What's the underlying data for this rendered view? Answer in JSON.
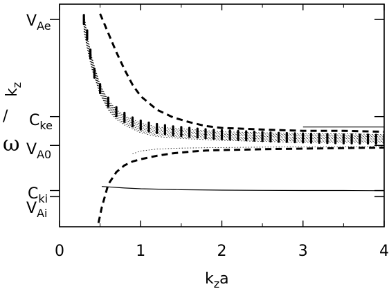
{
  "chart_data": {
    "type": "line",
    "title": "",
    "xlabel": {
      "main": "k",
      "sub": "z",
      "tail": "a"
    },
    "ylabel": {
      "omega": "ω",
      "slash": "/",
      "main": "k",
      "sub": "z"
    },
    "xlim": [
      0,
      4
    ],
    "xticks": [
      0,
      1,
      2,
      3,
      4
    ],
    "ytick_labels": [
      {
        "main": "V",
        "sub": "Ae",
        "speed": "VAe"
      },
      {
        "main": "C",
        "sub": "ke",
        "speed": "Cke"
      },
      {
        "main": "V",
        "sub": "A0",
        "speed": "VA0"
      },
      {
        "main": "C",
        "sub": "ki",
        "speed": "Cki"
      },
      {
        "main": "V",
        "sub": "Ai",
        "speed": "VAi"
      }
    ],
    "speed_levels": {
      "VAe": 1.0,
      "Cke": 0.494,
      "VA0": 0.344,
      "Cki": 0.109,
      "VAi": 0.077
    },
    "ylim": [
      -0.08,
      1.08
    ],
    "series": [
      {
        "style": "dashed",
        "x": [
          0.5,
          0.6,
          0.7,
          0.8,
          0.9,
          1.0,
          1.2,
          1.4,
          1.6,
          1.8,
          2.0,
          2.3,
          2.6,
          3.0,
          3.5,
          4.0
        ],
        "y": [
          1.03,
          0.93,
          0.83,
          0.74,
          0.66,
          0.6,
          0.53,
          0.49,
          0.465,
          0.445,
          0.435,
          0.43,
          0.425,
          0.42,
          0.42,
          0.415
        ]
      },
      {
        "style": "dashed",
        "x": [
          0.48,
          0.52,
          0.6,
          0.7,
          0.8,
          0.9,
          1.0,
          1.2,
          1.4,
          1.6,
          1.8,
          2.0,
          2.3,
          2.6,
          3.0,
          3.5,
          4.0
        ],
        "y": [
          -0.06,
          0.02,
          0.14,
          0.205,
          0.24,
          0.26,
          0.272,
          0.29,
          0.303,
          0.311,
          0.317,
          0.32,
          0.322,
          0.325,
          0.327,
          0.33,
          0.333
        ]
      },
      {
        "style": "solid",
        "x": [
          0.52,
          0.8,
          1.0,
          1.5,
          2.0,
          2.5,
          3.0,
          3.5,
          4.0
        ],
        "y": [
          0.13,
          0.122,
          0.118,
          0.113,
          0.111,
          0.11,
          0.109,
          0.109,
          0.108
        ]
      },
      {
        "style": "solid",
        "x": [
          3.0,
          3.5,
          4.0
        ],
        "y": [
          0.44,
          0.44,
          0.44
        ]
      }
    ],
    "thin_curves": {
      "style": "dotted",
      "count": 8,
      "x": [
        0.3,
        0.35,
        0.4,
        0.5,
        0.6,
        0.7,
        0.8,
        1.0,
        1.2,
        1.5,
        2.0,
        2.5,
        3.0,
        3.5,
        4.0
      ],
      "upper": [
        1.03,
        0.9,
        0.8,
        0.66,
        0.58,
        0.53,
        0.5,
        0.46,
        0.44,
        0.43,
        0.415,
        0.41,
        0.405,
        0.405,
        0.4
      ],
      "lower": [
        0.94,
        0.83,
        0.74,
        0.61,
        0.53,
        0.48,
        0.45,
        0.41,
        0.39,
        0.38,
        0.37,
        0.365,
        0.36,
        0.36,
        0.36
      ]
    },
    "lower_dotted": {
      "style": "dotted",
      "x": [
        0.9,
        1.0,
        1.2,
        1.5,
        2.0,
        2.5,
        3.0,
        3.5,
        4.0
      ],
      "y": [
        0.3,
        0.315,
        0.325,
        0.33,
        0.333,
        0.335,
        0.336,
        0.337,
        0.338
      ]
    },
    "blobs": {
      "x": [
        0.3,
        0.34,
        0.38,
        0.43,
        0.5,
        0.6,
        0.7,
        0.8,
        0.9,
        1.0,
        1.1,
        1.2,
        1.3,
        1.4,
        1.5,
        1.6,
        1.7,
        1.8,
        1.9,
        2.0,
        2.1,
        2.2,
        2.3,
        2.4,
        2.5,
        2.6,
        2.7,
        2.8,
        2.9,
        3.0,
        3.1,
        3.2,
        3.3,
        3.4,
        3.5,
        3.6,
        3.7,
        3.8,
        3.9,
        4.0
      ],
      "y": [
        1.0,
        0.92,
        0.82,
        0.72,
        0.64,
        0.57,
        0.52,
        0.49,
        0.466,
        0.45,
        0.44,
        0.432,
        0.426,
        0.42,
        0.416,
        0.412,
        0.408,
        0.405,
        0.402,
        0.4,
        0.398,
        0.396,
        0.394,
        0.392,
        0.39,
        0.388,
        0.386,
        0.385,
        0.384,
        0.383,
        0.382,
        0.381,
        0.38,
        0.379,
        0.378,
        0.378,
        0.377,
        0.377,
        0.376,
        0.376
      ]
    }
  }
}
